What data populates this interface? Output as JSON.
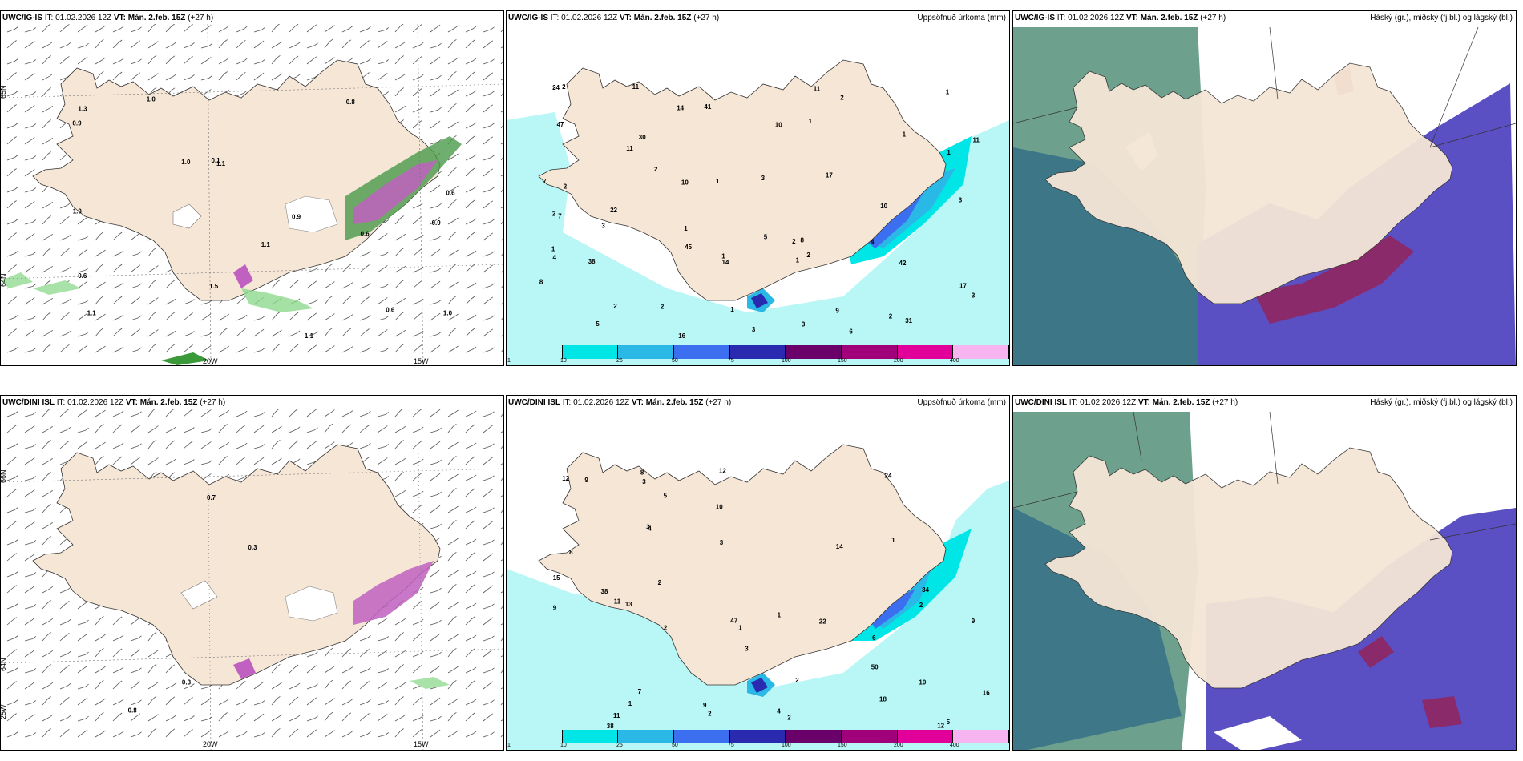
{
  "panels": [
    {
      "title_model": "UWC/IG-IS",
      "title_rest": " IT: 01.02.2026 12Z ",
      "title_vt_label": "VT:",
      "title_vt": " Mán. 2.feb. 15Z",
      "title_lead": " (+27 h)",
      "right_label": "",
      "labels": [
        "0.6",
        "0.9",
        "1.1",
        "1.0",
        "1.1",
        "0.6",
        "0.6",
        "0.8",
        "1.0",
        "1.1",
        "0.9",
        "1.0",
        "1.3",
        "1.0",
        "1.5",
        "0.6",
        "1.1",
        "0.9",
        "0.1"
      ],
      "lon_labels": [
        "20W",
        "15W"
      ],
      "lat_labels": [
        "65N",
        "64N"
      ]
    },
    {
      "title_model": "UWC/IG-IS",
      "title_rest": " IT: 01.02.2026 12Z ",
      "title_vt_label": "VT:",
      "title_vt": " Mán. 2.feb. 15Z",
      "title_lead": " (+27 h)",
      "right_label": "Uppsöfnuð úrkoma (mm)",
      "labels": [
        "2",
        "2",
        "1",
        "1",
        "1",
        "1",
        "10",
        "8",
        "10",
        "3",
        "2",
        "7",
        "38",
        "1",
        "42",
        "17",
        "17",
        "4",
        "16",
        "11",
        "1",
        "2",
        "14",
        "5",
        "24",
        "11",
        "9",
        "7",
        "3",
        "3",
        "3",
        "45",
        "41",
        "47",
        "5",
        "11",
        "6",
        "8",
        "31",
        "30",
        "22",
        "10",
        "11",
        "14",
        "2",
        "2",
        "2",
        "3",
        "1",
        "1",
        "1",
        "1",
        "2",
        "2",
        "4",
        "3",
        "2"
      ],
      "legend": [
        "1",
        "10",
        "25",
        "50",
        "75",
        "100",
        "150",
        "200",
        "400"
      ]
    },
    {
      "title_model": "UWC/IG-IS",
      "title_rest": " IT: 01.02.2026 12Z ",
      "title_vt_label": "VT:",
      "title_vt": " Mán. 2.feb. 15Z",
      "title_lead": " (+27 h)",
      "right_label": "Háský (gr.), miðský (fj.bl.) og lágský (bl.)"
    },
    {
      "title_model": "UWC/DINI ISL",
      "title_rest": " IT: 01.02.2026 12Z ",
      "title_vt_label": "VT:",
      "title_vt": " Mán. 2.feb. 15Z",
      "title_lead": " (+27 h)",
      "right_label": "",
      "labels": [
        "0.3",
        "0.7",
        "0.3",
        "0.8"
      ],
      "lon_labels": [
        "20W",
        "15W"
      ],
      "lat_labels": [
        "66N",
        "64N",
        "25W"
      ]
    },
    {
      "title_model": "UWC/DINI ISL",
      "title_rest": " IT: 01.02.2026 12Z ",
      "title_vt_label": "VT:",
      "title_vt": " Mán. 2.feb. 15Z",
      "title_lead": " (+27 h)",
      "right_label": "Uppsöfnuð úrkoma (mm)",
      "labels": [
        "1",
        "2",
        "2",
        "1",
        "8",
        "7",
        "6",
        "3",
        "2",
        "11",
        "12",
        "24",
        "38",
        "12",
        "15",
        "16",
        "9",
        "10",
        "12",
        "11",
        "13",
        "14",
        "22",
        "18",
        "38",
        "50",
        "47",
        "34",
        "10",
        "4",
        "9",
        "5",
        "3",
        "3",
        "9",
        "2",
        "2",
        "1",
        "1",
        "3",
        "2",
        "9",
        "8",
        "5",
        "4"
      ],
      "legend": [
        "1",
        "10",
        "25",
        "50",
        "75",
        "100",
        "150",
        "200",
        "400"
      ]
    },
    {
      "title_model": "UWC/DINI ISL",
      "title_rest": " IT: 01.02.2026 12Z ",
      "title_vt_label": "VT:",
      "title_vt": " Mán. 2.feb. 15Z",
      "title_lead": " (+27 h)",
      "right_label": "Háský (gr.), miðský (fj.bl.) og lágský (bl.)"
    }
  ],
  "colors": {
    "land": "#f5e6d6",
    "precip_scale": [
      "#b9f6f6",
      "#00e5e5",
      "#2ab8e6",
      "#3c6ef0",
      "#2a2ab0",
      "#6a006a",
      "#a0007a",
      "#e2009a",
      "#f6b4f0"
    ],
    "cloud_high": "#6ea08e",
    "cloud_mid": "#5b4fc4",
    "cloud_low": "#2f6b86",
    "cloud_red": "#b0304a"
  }
}
